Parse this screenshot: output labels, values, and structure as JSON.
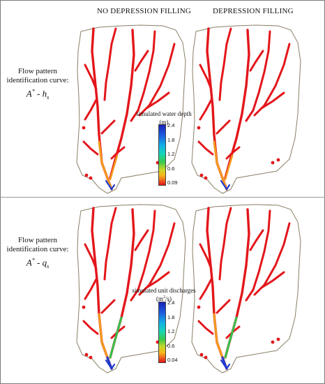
{
  "headers": {
    "no_depression": "NO DEPRESSION FILLING",
    "depression": "DEPRESSION FILLING"
  },
  "rows": [
    {
      "label_line1": "Flow pattern",
      "label_line2": "identification curve:",
      "formula_main": "A",
      "formula_sup": "*",
      "formula_sep": "- h",
      "formula_sub": "s",
      "legend_title": "simulated water depth",
      "legend_unit": "(m)",
      "legend_unit_sup": "",
      "legend_unit_tail": "",
      "ticks": [
        "2.4",
        "1.8",
        "1.2",
        "0.6",
        "0.09"
      ]
    },
    {
      "label_line1": "Flow pattern",
      "label_line2": "identification curve:",
      "formula_main": "A",
      "formula_sup": "*",
      "formula_sep": "- q",
      "formula_sub": "s",
      "legend_title": "simulated unit discharges",
      "legend_unit": "(m",
      "legend_unit_sup": "2",
      "legend_unit_tail": "/s)",
      "ticks": [
        "2.4",
        "1.8",
        "1.2",
        "0.6",
        "0.04"
      ]
    }
  ],
  "colors": {
    "channel_low": "#e3161b",
    "channel_mid": "#f39a1e",
    "channel_high": "#37c24c",
    "channel_peak": "#1e3bd0",
    "outline": "#8a7f66"
  }
}
